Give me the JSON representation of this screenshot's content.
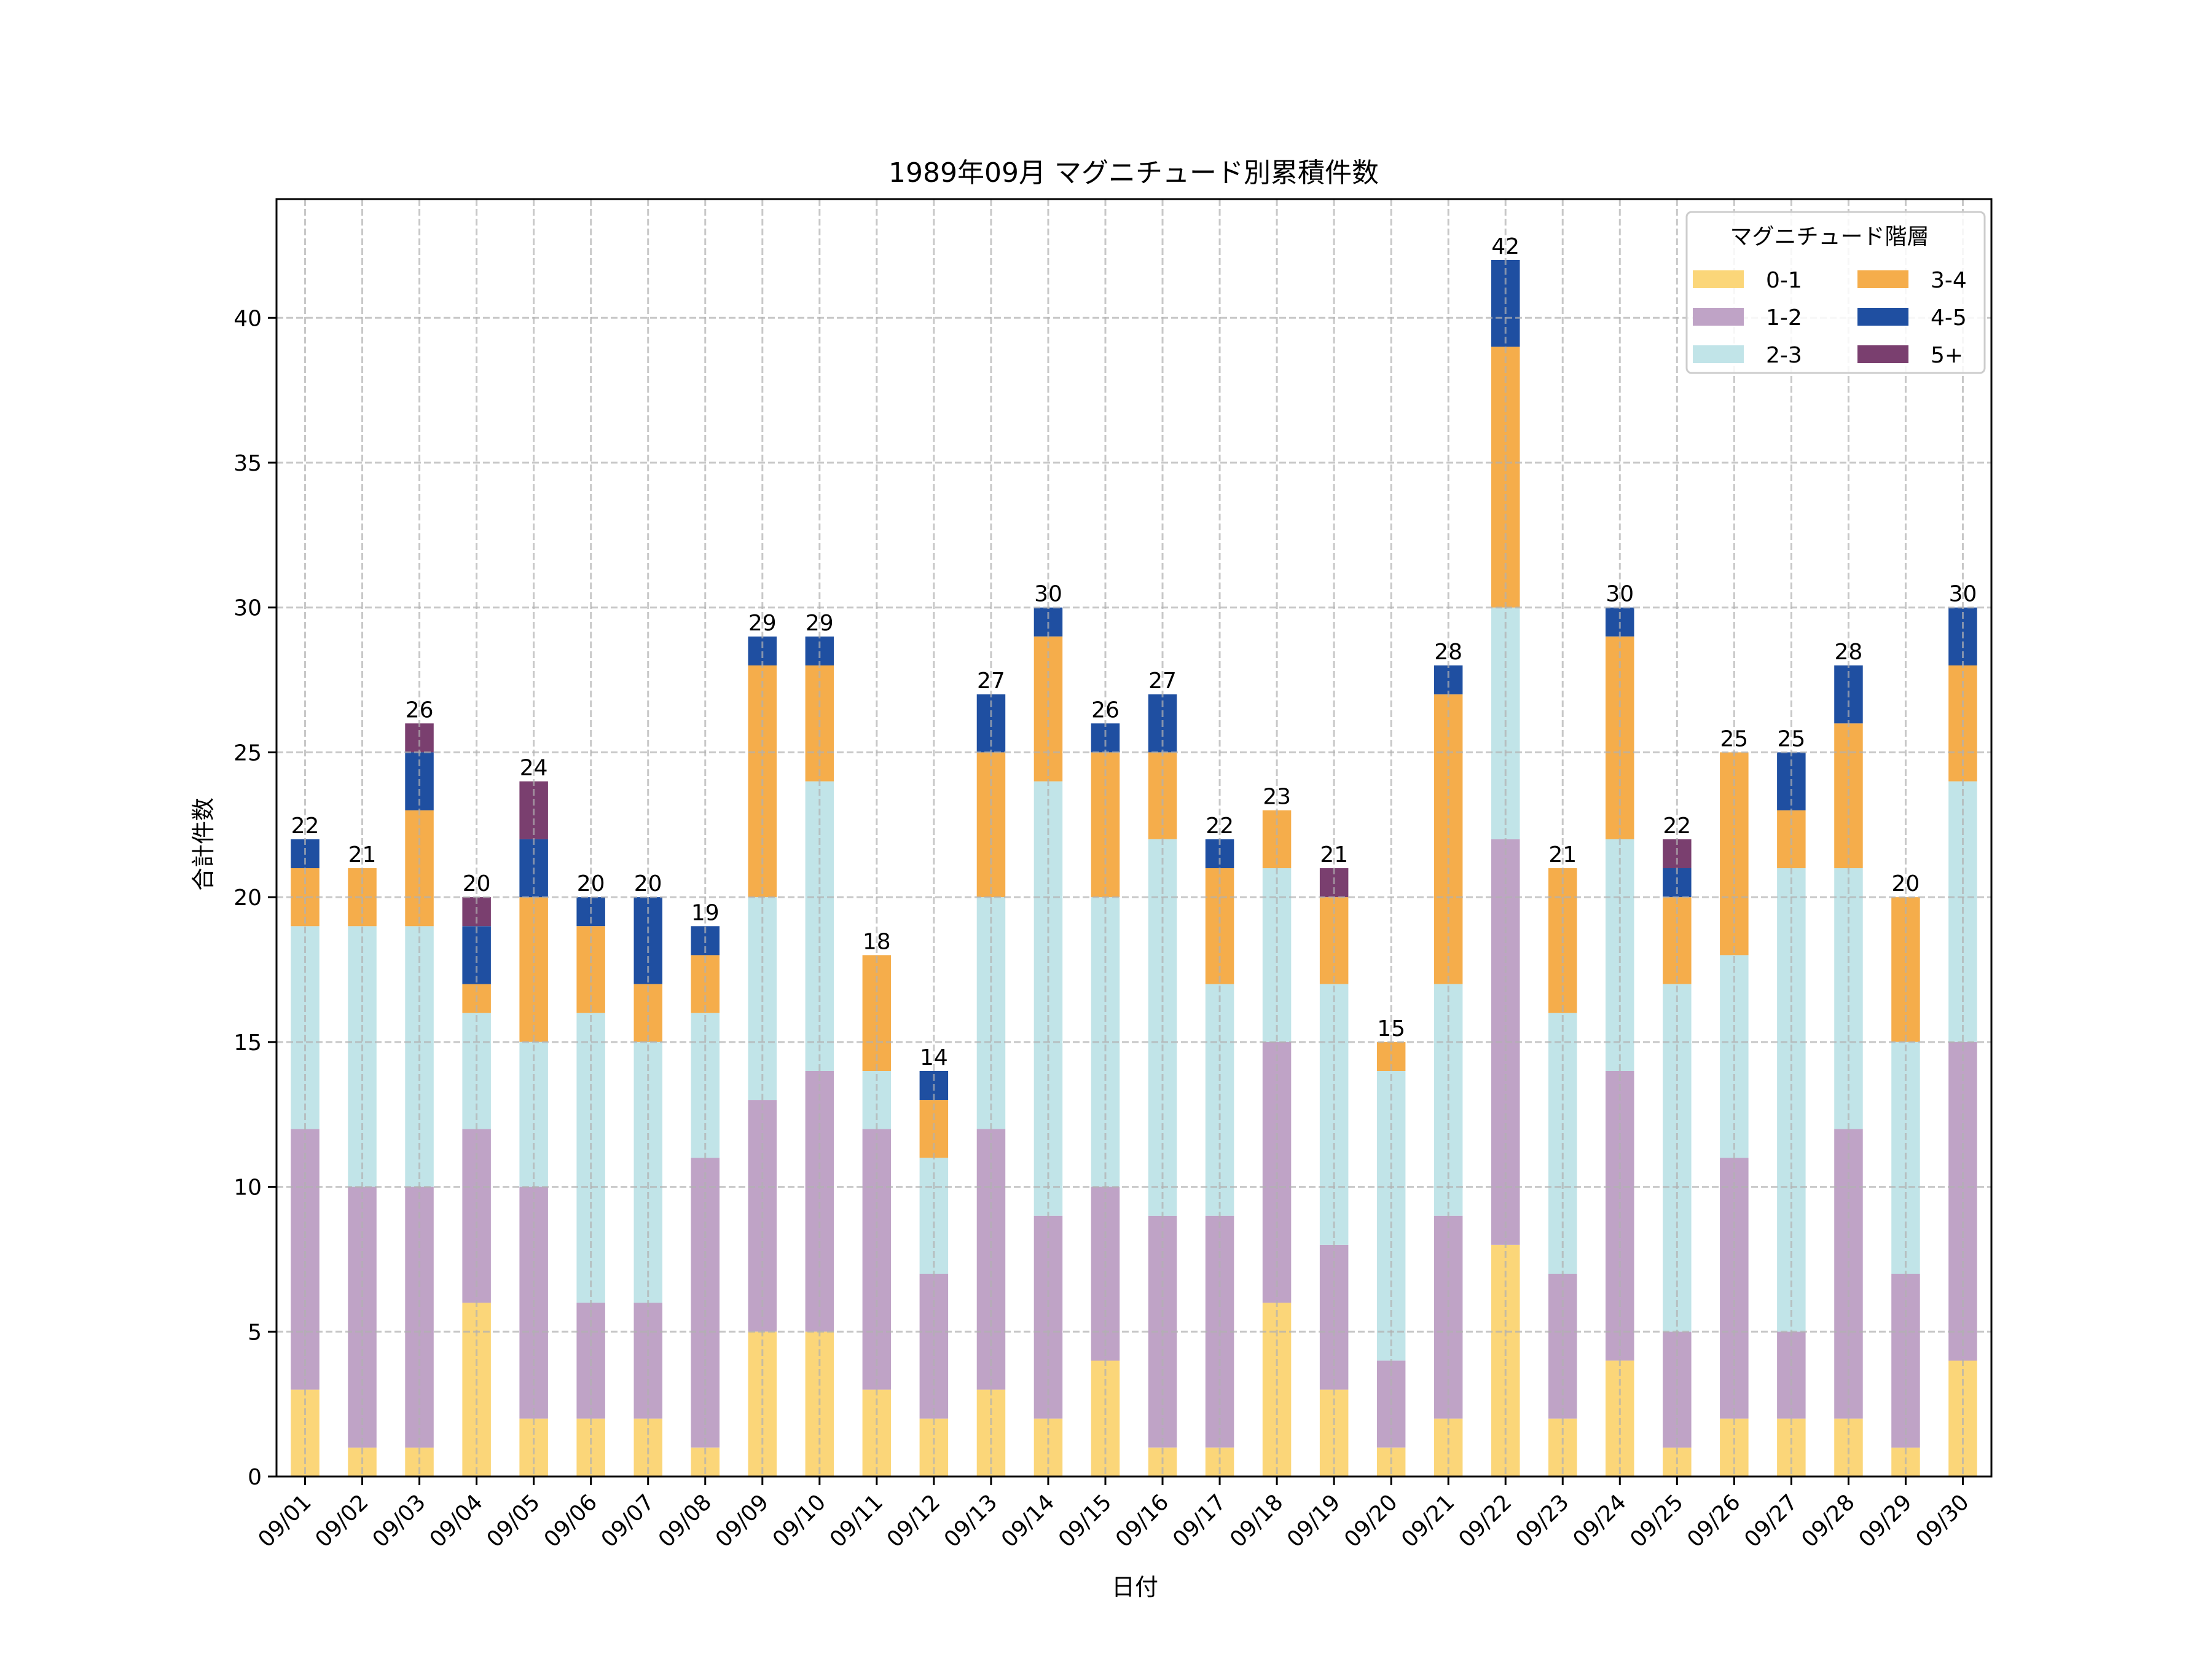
{
  "chart_data": {
    "type": "bar",
    "stacked": true,
    "title": "1989年09月 マグニチュード別累積件数",
    "xlabel": "日付",
    "ylabel": "合計件数",
    "ylim": [
      0,
      44.1
    ],
    "yticks": [
      0,
      5,
      10,
      15,
      20,
      25,
      30,
      35,
      40
    ],
    "grid": true,
    "categories": [
      "09/01",
      "09/02",
      "09/03",
      "09/04",
      "09/05",
      "09/06",
      "09/07",
      "09/08",
      "09/09",
      "09/10",
      "09/11",
      "09/12",
      "09/13",
      "09/14",
      "09/15",
      "09/16",
      "09/17",
      "09/18",
      "09/19",
      "09/20",
      "09/21",
      "09/22",
      "09/23",
      "09/24",
      "09/25",
      "09/26",
      "09/27",
      "09/28",
      "09/29",
      "09/30"
    ],
    "legend": {
      "title": "マグニチュード階層",
      "placement": "top-right",
      "columns": 2
    },
    "series": [
      {
        "name": "0-1",
        "color": "#FBD679",
        "values": [
          3,
          1,
          1,
          6,
          2,
          2,
          2,
          1,
          5,
          5,
          3,
          2,
          3,
          2,
          4,
          1,
          1,
          6,
          3,
          1,
          2,
          8,
          2,
          4,
          1,
          2,
          2,
          2,
          1,
          4
        ]
      },
      {
        "name": "1-2",
        "color": "#BFA3C6",
        "values": [
          9,
          9,
          9,
          6,
          8,
          4,
          4,
          10,
          8,
          9,
          9,
          5,
          9,
          7,
          6,
          8,
          8,
          9,
          5,
          3,
          7,
          14,
          5,
          10,
          4,
          9,
          3,
          10,
          6,
          11
        ]
      },
      {
        "name": "2-3",
        "color": "#C1E4E8",
        "values": [
          7,
          9,
          9,
          4,
          5,
          10,
          9,
          5,
          7,
          10,
          2,
          4,
          8,
          15,
          10,
          13,
          8,
          6,
          9,
          10,
          8,
          8,
          9,
          8,
          12,
          7,
          16,
          9,
          8,
          9
        ]
      },
      {
        "name": "3-4",
        "color": "#F5AD4B",
        "values": [
          2,
          2,
          4,
          1,
          5,
          3,
          2,
          2,
          8,
          4,
          4,
          2,
          5,
          5,
          5,
          3,
          4,
          2,
          3,
          1,
          10,
          9,
          5,
          7,
          3,
          7,
          2,
          5,
          5,
          4
        ]
      },
      {
        "name": "4-5",
        "color": "#1F4FA1",
        "values": [
          1,
          0,
          2,
          2,
          2,
          1,
          3,
          1,
          1,
          1,
          0,
          1,
          2,
          1,
          1,
          2,
          1,
          0,
          0,
          0,
          1,
          3,
          0,
          1,
          1,
          0,
          2,
          2,
          0,
          2
        ]
      },
      {
        "name": "5+",
        "color": "#7A3F6F",
        "values": [
          0,
          0,
          1,
          1,
          2,
          0,
          0,
          0,
          0,
          0,
          0,
          0,
          0,
          0,
          0,
          0,
          0,
          0,
          1,
          0,
          0,
          0,
          0,
          0,
          1,
          0,
          0,
          0,
          0,
          0
        ]
      }
    ],
    "totals": [
      "22",
      "21",
      "26",
      "20",
      "24",
      "20",
      "20",
      "19",
      "29",
      "29",
      "18",
      "14",
      "27",
      "30",
      "26",
      "27",
      "22",
      "23",
      "21",
      "15",
      "28",
      "42",
      "21",
      "30",
      "22",
      "25",
      "25",
      "28",
      "20",
      "30"
    ]
  }
}
